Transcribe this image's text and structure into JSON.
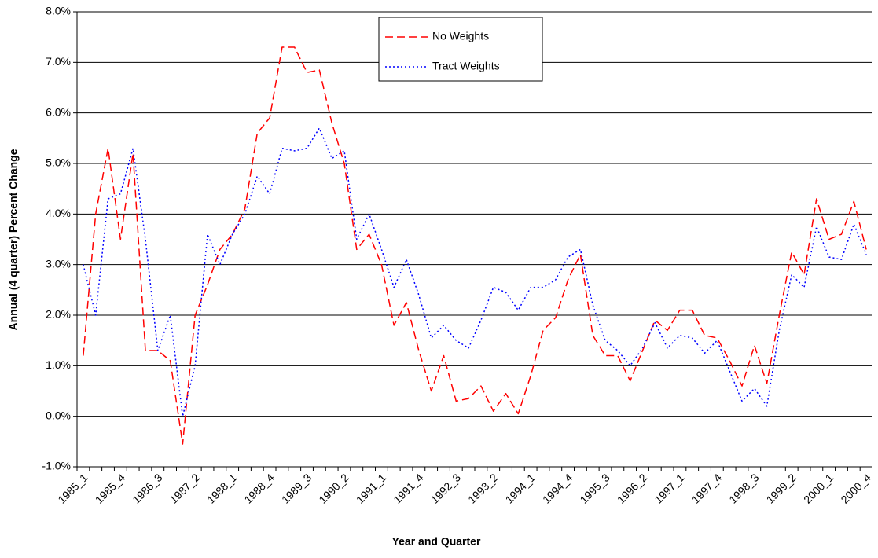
{
  "chart_data": {
    "type": "line",
    "x_label": "Year and Quarter",
    "y_label": "Annual (4 quarter) Percent Change",
    "categories": [
      "1985_1",
      null,
      null,
      "1985_4",
      null,
      null,
      "1986_3",
      null,
      null,
      "1987_2",
      null,
      null,
      "1988_1",
      null,
      null,
      "1988_4",
      null,
      null,
      "1989_3",
      null,
      null,
      "1990_2",
      null,
      null,
      "1991_1",
      null,
      null,
      "1991_4",
      null,
      null,
      "1992_3",
      null,
      null,
      "1993_2",
      null,
      null,
      "1994_1",
      null,
      null,
      "1994_4",
      null,
      null,
      "1995_3",
      null,
      null,
      "1996_2",
      null,
      null,
      "1997_1",
      null,
      null,
      "1997_4",
      null,
      null,
      "1998_3",
      null,
      null,
      "1999_2",
      null,
      null,
      "2000_1",
      null,
      null,
      "2000_4"
    ],
    "series": [
      {
        "name": "No Weights",
        "color": "#ff0000",
        "dash": "10,5",
        "values": [
          1.2,
          4.0,
          5.3,
          3.5,
          5.2,
          1.3,
          1.3,
          1.1,
          -0.55,
          2.0,
          2.6,
          3.3,
          3.6,
          4.1,
          5.6,
          5.9,
          7.3,
          7.3,
          6.8,
          6.85,
          5.8,
          5.0,
          3.3,
          3.6,
          3.0,
          1.8,
          2.25,
          1.3,
          0.5,
          1.2,
          0.3,
          0.35,
          0.6,
          0.1,
          0.45,
          0.05,
          0.8,
          1.7,
          1.95,
          2.7,
          3.2,
          1.6,
          1.2,
          1.2,
          0.7,
          1.3,
          1.9,
          1.7,
          2.1,
          2.1,
          1.6,
          1.55,
          1.1,
          0.6,
          1.4,
          0.65,
          2.0,
          3.25,
          2.8,
          4.3,
          3.5,
          3.6,
          4.25,
          3.3
        ]
      },
      {
        "name": "Tract Weights",
        "color": "#0000ff",
        "dash": "2,3",
        "values": [
          3.0,
          2.0,
          4.3,
          4.4,
          5.3,
          3.5,
          1.3,
          2.0,
          0.0,
          1.0,
          3.6,
          3.0,
          3.6,
          4.0,
          4.75,
          4.4,
          5.3,
          5.25,
          5.3,
          5.7,
          5.1,
          5.25,
          3.5,
          4.0,
          3.3,
          2.55,
          3.1,
          2.4,
          1.55,
          1.8,
          1.5,
          1.35,
          1.9,
          2.55,
          2.45,
          2.1,
          2.55,
          2.55,
          2.7,
          3.15,
          3.3,
          2.2,
          1.5,
          1.3,
          1.0,
          1.35,
          1.85,
          1.35,
          1.6,
          1.55,
          1.25,
          1.5,
          0.9,
          0.3,
          0.55,
          0.2,
          1.7,
          2.8,
          2.55,
          3.75,
          3.15,
          3.1,
          3.8,
          3.2
        ]
      }
    ],
    "ylim": [
      -1,
      8
    ],
    "yticks": [
      {
        "value": -1,
        "label": "-1.0%"
      },
      {
        "value": 0,
        "label": "0.0%"
      },
      {
        "value": 1,
        "label": "1.0%"
      },
      {
        "value": 2,
        "label": "2.0%"
      },
      {
        "value": 3,
        "label": "3.0%"
      },
      {
        "value": 4,
        "label": "4.0%"
      },
      {
        "value": 5,
        "label": "5.0%"
      },
      {
        "value": 6,
        "label": "6.0%"
      },
      {
        "value": 7,
        "label": "7.0%"
      },
      {
        "value": 8,
        "label": "8.0%"
      }
    ],
    "grid": true
  }
}
